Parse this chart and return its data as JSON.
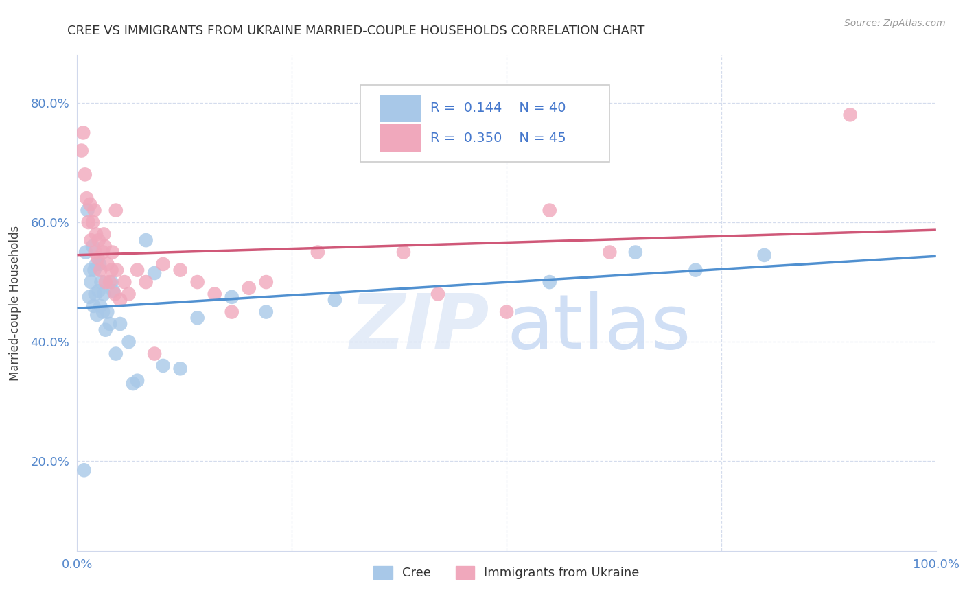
{
  "title": "CREE VS IMMIGRANTS FROM UKRAINE MARRIED-COUPLE HOUSEHOLDS CORRELATION CHART",
  "source": "Source: ZipAtlas.com",
  "ylabel": "Married-couple Households",
  "xlim": [
    0.0,
    1.0
  ],
  "ylim": [
    0.05,
    0.88
  ],
  "xticks": [
    0.0,
    0.25,
    0.5,
    0.75,
    1.0
  ],
  "xtick_labels": [
    "0.0%",
    "",
    "",
    "",
    "100.0%"
  ],
  "yticks": [
    0.2,
    0.4,
    0.6,
    0.8
  ],
  "ytick_labels": [
    "20.0%",
    "40.0%",
    "60.0%",
    "80.0%"
  ],
  "legend_r1": "R =  0.144",
  "legend_n1": "N = 40",
  "legend_r2": "R =  0.350",
  "legend_n2": "N = 45",
  "cree_color": "#a8c8e8",
  "ukraine_color": "#f0a8bc",
  "cree_line_color": "#5090d0",
  "ukraine_line_color": "#d05878",
  "dash_line_color": "#b0c8e8",
  "cree_x": [
    0.008,
    0.01,
    0.012,
    0.014,
    0.015,
    0.016,
    0.018,
    0.019,
    0.02,
    0.021,
    0.022,
    0.023,
    0.025,
    0.026,
    0.027,
    0.028,
    0.03,
    0.031,
    0.033,
    0.035,
    0.038,
    0.04,
    0.045,
    0.05,
    0.06,
    0.065,
    0.07,
    0.08,
    0.1,
    0.12,
    0.14,
    0.18,
    0.22,
    0.3,
    0.55,
    0.65,
    0.72,
    0.8,
    0.09,
    0.042
  ],
  "cree_y": [
    0.185,
    0.55,
    0.62,
    0.475,
    0.52,
    0.5,
    0.56,
    0.46,
    0.52,
    0.48,
    0.53,
    0.445,
    0.485,
    0.53,
    0.46,
    0.5,
    0.45,
    0.48,
    0.42,
    0.45,
    0.43,
    0.5,
    0.38,
    0.43,
    0.4,
    0.33,
    0.335,
    0.57,
    0.36,
    0.355,
    0.44,
    0.475,
    0.45,
    0.47,
    0.5,
    0.55,
    0.52,
    0.545,
    0.515,
    0.485
  ],
  "ukraine_x": [
    0.005,
    0.007,
    0.009,
    0.011,
    0.013,
    0.015,
    0.016,
    0.018,
    0.02,
    0.021,
    0.022,
    0.024,
    0.025,
    0.027,
    0.03,
    0.031,
    0.033,
    0.035,
    0.038,
    0.04,
    0.041,
    0.044,
    0.046,
    0.05,
    0.055,
    0.06,
    0.07,
    0.08,
    0.09,
    0.1,
    0.12,
    0.14,
    0.16,
    0.18,
    0.22,
    0.28,
    0.38,
    0.42,
    0.5,
    0.55,
    0.62,
    0.9,
    0.045,
    0.032,
    0.2
  ],
  "ukraine_y": [
    0.72,
    0.75,
    0.68,
    0.64,
    0.6,
    0.63,
    0.57,
    0.6,
    0.62,
    0.55,
    0.58,
    0.54,
    0.57,
    0.52,
    0.55,
    0.58,
    0.5,
    0.53,
    0.5,
    0.52,
    0.55,
    0.48,
    0.52,
    0.47,
    0.5,
    0.48,
    0.52,
    0.5,
    0.38,
    0.53,
    0.52,
    0.5,
    0.48,
    0.45,
    0.5,
    0.55,
    0.55,
    0.48,
    0.45,
    0.62,
    0.55,
    0.78,
    0.62,
    0.56,
    0.49
  ]
}
